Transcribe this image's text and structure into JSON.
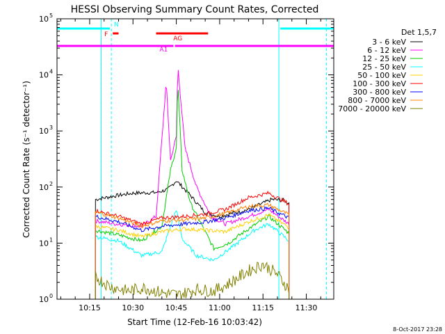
{
  "chart_data": {
    "type": "line",
    "title": "HESSI Observing Summary Count Rates, Corrected",
    "xlabel": "Start Time (12-Feb-16 10:03:42)",
    "ylabel": "Corrected Count Rate (s⁻¹ detector⁻¹)",
    "y_scale": "log",
    "ylim": [
      1,
      100000
    ],
    "y_ticks": [
      {
        "value": 1,
        "base": "10",
        "exp": "0"
      },
      {
        "value": 10,
        "base": "10",
        "exp": "1"
      },
      {
        "value": 100,
        "base": "10",
        "exp": "2"
      },
      {
        "value": 1000,
        "base": "10",
        "exp": "3"
      },
      {
        "value": 10000,
        "base": "10",
        "exp": "4"
      },
      {
        "value": 100000,
        "base": "10",
        "exp": "5"
      }
    ],
    "xlim": [
      "10:03:42",
      "11:39:30"
    ],
    "x_ticks": [
      "10:15",
      "10:30",
      "10:45",
      "11:00",
      "11:15",
      "11:30"
    ],
    "legend_title": "Det 1,5,7",
    "legend_position": "right",
    "series": [
      {
        "name": "3 - 6 keV",
        "color": "#000000",
        "x": [
          "10:17:00",
          "10:24:00",
          "10:30:00",
          "10:38:00",
          "10:42:00",
          "10:45:00",
          "10:49:00",
          "10:55:00",
          "11:00:00",
          "11:10:00",
          "11:18:00",
          "11:22:00",
          "11:24:00"
        ],
        "y": [
          60,
          70,
          78,
          80,
          90,
          130,
          80,
          35,
          30,
          40,
          60,
          58,
          52
        ]
      },
      {
        "name": "6 - 12 keV",
        "color": "#ff00ff",
        "x": [
          "10:17:00",
          "10:24:00",
          "10:33:00",
          "10:38:00",
          "10:41:30",
          "10:43:00",
          "10:45:00",
          "10:45:30",
          "10:48:00",
          "10:52:00",
          "10:57:00",
          "11:02:00",
          "11:10:00",
          "11:17:00",
          "11:24:00"
        ],
        "y": [
          25,
          22,
          20,
          30,
          7500,
          300,
          800,
          15000,
          500,
          100,
          30,
          22,
          30,
          40,
          22
        ]
      },
      {
        "name": "12 - 25 keV",
        "color": "#00cc00",
        "x": [
          "10:17:00",
          "10:25:00",
          "10:33:00",
          "10:40:00",
          "10:43:00",
          "10:45:00",
          "10:45:30",
          "10:47:00",
          "10:50:00",
          "10:54:00",
          "10:58:00",
          "11:03:00",
          "11:10:00",
          "11:17:00",
          "11:24:00"
        ],
        "y": [
          17,
          14,
          11,
          20,
          200,
          500,
          8000,
          200,
          50,
          20,
          8,
          10,
          18,
          30,
          15
        ]
      },
      {
        "name": "25 - 50 keV",
        "color": "#00ffff",
        "x": [
          "10:17:00",
          "10:25:00",
          "10:33:00",
          "10:40:00",
          "10:45:00",
          "10:47:00",
          "10:52:00",
          "10:58:00",
          "11:05:00",
          "11:12:00",
          "11:17:00",
          "11:24:00"
        ],
        "y": [
          13,
          11,
          6,
          7,
          40,
          12,
          6,
          5,
          9,
          17,
          22,
          11
        ]
      },
      {
        "name": "50 - 100 keV",
        "color": "#ffd000",
        "x": [
          "10:17:00",
          "10:25:00",
          "10:33:00",
          "10:40:00",
          "10:48:00",
          "10:55:00",
          "11:02:00",
          "11:10:00",
          "11:17:00",
          "11:24:00"
        ],
        "y": [
          20,
          17,
          13,
          16,
          18,
          17,
          16,
          24,
          32,
          19
        ]
      },
      {
        "name": "100 - 300 keV",
        "color": "#ff0000",
        "x": [
          "10:17:00",
          "10:25:00",
          "10:33:00",
          "10:40:00",
          "10:48:00",
          "10:55:00",
          "11:02:00",
          "11:10:00",
          "11:17:00",
          "11:24:00"
        ],
        "y": [
          38,
          30,
          22,
          28,
          30,
          33,
          40,
          65,
          78,
          50
        ]
      },
      {
        "name": "300 - 800 keV",
        "color": "#0000ff",
        "x": [
          "10:17:00",
          "10:25:00",
          "10:33:00",
          "10:40:00",
          "10:48:00",
          "10:55:00",
          "11:02:00",
          "11:10:00",
          "11:17:00",
          "11:24:00"
        ],
        "y": [
          30,
          24,
          17,
          20,
          22,
          24,
          28,
          38,
          42,
          28
        ]
      },
      {
        "name": "800 - 7000 keV",
        "color": "#ff8000",
        "x": [
          "10:17:00",
          "10:25:00",
          "10:33:00",
          "10:40:00",
          "10:48:00",
          "10:55:00",
          "11:02:00",
          "11:10:00",
          "11:17:00",
          "11:24:00"
        ],
        "y": [
          36,
          28,
          20,
          25,
          26,
          28,
          34,
          45,
          48,
          32
        ]
      },
      {
        "name": "7000 - 20000 keV",
        "color": "#808000",
        "x": [
          "10:17:00",
          "10:22:00",
          "10:28:00",
          "10:34:00",
          "10:40:00",
          "10:46:00",
          "10:52:00",
          "10:58:00",
          "11:04:00",
          "11:10:00",
          "11:15:00",
          "11:20:00",
          "11:24:00"
        ],
        "y": [
          2.5,
          1.7,
          1.4,
          1.6,
          1.3,
          1.2,
          1.5,
          1.4,
          2.0,
          3.2,
          4.2,
          2.8,
          1.5
        ]
      }
    ],
    "attenuator_bars": [
      {
        "label": "N",
        "color": "#00ffff",
        "ranges": [
          [
            "10:03:42",
            "10:22:00"
          ],
          [
            "11:21:00",
            "11:39:30"
          ]
        ]
      },
      {
        "label": "F",
        "color": "#ff0000",
        "ranges": [
          [
            "10:23:00",
            "10:25:00"
          ]
        ]
      },
      {
        "label": "AG",
        "color": "#ff0000",
        "ranges": [
          [
            "10:38:00",
            "10:56:00"
          ]
        ]
      },
      {
        "label": "A1",
        "color": "#ff00ff",
        "ranges": [
          [
            "10:03:42",
            "10:44:00"
          ],
          [
            "10:44:30",
            "11:39:30"
          ]
        ]
      }
    ],
    "vertical_lines": [
      {
        "x": "10:19:00",
        "color": "#00ffff",
        "style": "solid"
      },
      {
        "x": "10:22:30",
        "color": "#00ffff",
        "style": "dashed"
      },
      {
        "x": "11:20:30",
        "color": "#00ffff",
        "style": "solid"
      },
      {
        "x": "11:37:00",
        "color": "#00ffff",
        "style": "dashed"
      }
    ],
    "footer": "8-Oct-2017 23:28"
  }
}
